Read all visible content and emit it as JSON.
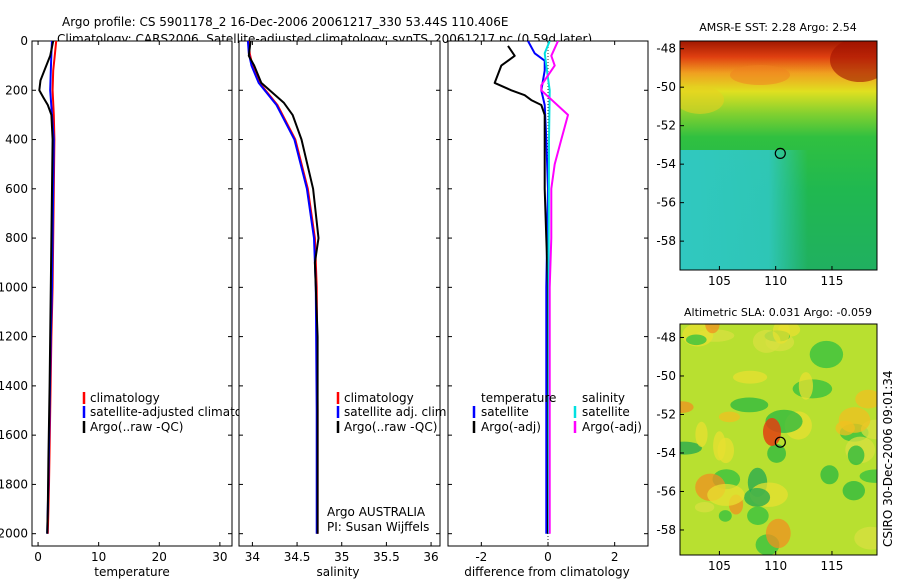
{
  "header": {
    "line1": "Argo profile: CS 5901178_2 16-Dec-2006 20061217_330 53.44S 110.406E",
    "line2": "Climatology: CARS2006. Satellite-adjusted climatology: synTS_20061217.nc (0.59d later)"
  },
  "chart_data": [
    {
      "id": "temperature",
      "type": "line",
      "xlabel": "temperature",
      "ylabel": "",
      "xlim": [
        -1,
        32
      ],
      "ylim": [
        2050,
        0
      ],
      "xticks": [
        0,
        10,
        20,
        30
      ],
      "yticks": [
        0,
        200,
        400,
        600,
        800,
        1000,
        1200,
        1400,
        1600,
        1800,
        2000
      ],
      "xtick_labels": [
        "0",
        "10",
        "20",
        "30"
      ],
      "ytick_labels": [
        "0",
        "200",
        "400",
        "600",
        "800",
        "1000",
        "1200",
        "1400",
        "1600",
        "1800",
        "2000"
      ],
      "legend": [
        "climatology",
        "satellite-adjusted climatology",
        "Argo(..raw -QC)"
      ],
      "series": [
        {
          "name": "climatology",
          "color": "#ff0000",
          "x": [
            3.0,
            2.8,
            2.5,
            2.4,
            2.6,
            2.7,
            2.6,
            2.5,
            2.4,
            2.2,
            2.0,
            1.8,
            1.6
          ],
          "y": [
            0,
            50,
            120,
            200,
            300,
            400,
            600,
            800,
            1000,
            1200,
            1500,
            1800,
            2000
          ]
        },
        {
          "name": "satellite-adjusted climatology",
          "color": "#0000ff",
          "x": [
            2.3,
            2.2,
            2.1,
            2.0,
            2.3,
            2.6,
            2.5,
            2.4,
            2.3,
            2.1,
            1.9,
            1.7,
            1.5
          ],
          "y": [
            0,
            50,
            120,
            200,
            300,
            400,
            600,
            800,
            1000,
            1200,
            1500,
            1800,
            2000
          ]
        },
        {
          "name": "Argo(..raw -QC)",
          "color": "#000000",
          "x": [
            2.5,
            2.0,
            1.2,
            0.4,
            0.2,
            0.9,
            1.6,
            2.2,
            2.4,
            2.3,
            2.1,
            1.9,
            1.7,
            1.6,
            1.5
          ],
          "y": [
            0,
            60,
            110,
            160,
            200,
            230,
            260,
            300,
            400,
            600,
            1000,
            1400,
            1700,
            1900,
            2000
          ]
        }
      ]
    },
    {
      "id": "salinity",
      "type": "line",
      "xlabel": "salinity",
      "ylabel": "",
      "xlim": [
        33.85,
        36.1
      ],
      "ylim": [
        2050,
        0
      ],
      "xticks": [
        34,
        34.5,
        35,
        35.5,
        36
      ],
      "yticks": [
        0,
        200,
        400,
        600,
        800,
        1000,
        1200,
        1400,
        1600,
        1800,
        2000
      ],
      "xtick_labels": [
        "34",
        "34.5",
        "35",
        "35.5",
        "36"
      ],
      "ytick_labels": [],
      "legend": [
        "climatology",
        "satellite adj. clim.",
        "Argo(..raw -QC)"
      ],
      "series": [
        {
          "name": "climatology",
          "color": "#ff0000",
          "x": [
            33.96,
            33.97,
            34.0,
            34.08,
            34.28,
            34.48,
            34.62,
            34.7,
            34.72,
            34.73,
            34.73
          ],
          "y": [
            0,
            50,
            100,
            170,
            260,
            400,
            600,
            800,
            1000,
            1500,
            2000
          ]
        },
        {
          "name": "satellite adj. clim.",
          "color": "#0000ff",
          "x": [
            33.95,
            33.96,
            33.99,
            34.07,
            34.27,
            34.47,
            34.61,
            34.69,
            34.71,
            34.72,
            34.72
          ],
          "y": [
            0,
            50,
            100,
            170,
            260,
            400,
            600,
            800,
            1000,
            1500,
            2000
          ]
        },
        {
          "name": "Argo(..raw -QC)",
          "color": "#000000",
          "x": [
            33.98,
            33.96,
            34.02,
            34.1,
            34.35,
            34.45,
            34.55,
            34.68,
            34.74,
            34.7,
            34.73,
            34.73
          ],
          "y": [
            0,
            60,
            100,
            170,
            250,
            300,
            400,
            600,
            800,
            900,
            1200,
            2000
          ]
        }
      ]
    },
    {
      "id": "difference",
      "type": "line",
      "xlabel": "difference from climatology",
      "ylabel": "",
      "xlim": [
        -3,
        3
      ],
      "ylim": [
        2050,
        0
      ],
      "xticks": [
        -2,
        0,
        2
      ],
      "yticks": [
        0,
        200,
        400,
        600,
        800,
        1000,
        1200,
        1400,
        1600,
        1800,
        2000
      ],
      "xtick_labels": [
        "-2",
        "0",
        "2"
      ],
      "ytick_labels": [],
      "legend": [
        "temperature",
        "satellite",
        "Argo(-adj)",
        "salinity",
        "satellite",
        "Argo(-adj)"
      ],
      "series": [
        {
          "name": "temperature satellite",
          "color": "#0000ff",
          "x": [
            -0.6,
            -0.4,
            -0.1,
            -0.1,
            -0.2,
            -0.1,
            -0.05,
            0.0,
            -0.05,
            -0.05,
            -0.05,
            -0.05
          ],
          "y": [
            0,
            50,
            80,
            120,
            200,
            260,
            400,
            600,
            1000,
            1400,
            1800,
            2000
          ]
        },
        {
          "name": "temperature Argo(-adj)",
          "color": "#000000",
          "x": [
            -1.2,
            -1.0,
            -1.4,
            -1.6,
            -1.1,
            -0.7,
            -0.5,
            -0.2,
            -0.1,
            -0.1,
            -0.1,
            -0.05,
            0.0,
            0.0,
            0.0
          ],
          "y": [
            20,
            60,
            100,
            170,
            200,
            220,
            240,
            260,
            300,
            400,
            600,
            800,
            1000,
            1500,
            2000
          ]
        },
        {
          "name": "salinity satellite",
          "color": "#00e0e0",
          "x": [
            0.05,
            -0.1,
            -0.05,
            0.0,
            0.05,
            0.03,
            0.02,
            0.02,
            0.02,
            0.03
          ],
          "y": [
            0,
            50,
            100,
            150,
            200,
            400,
            800,
            1200,
            1600,
            2000
          ]
        },
        {
          "name": "salinity Argo(-adj)",
          "color": "#ff00ff",
          "x": [
            0.3,
            0.1,
            0.2,
            -0.2,
            -0.2,
            0.6,
            0.4,
            0.2,
            0.1,
            0.1,
            0.05,
            0.05,
            0.05
          ],
          "y": [
            0,
            60,
            100,
            180,
            200,
            300,
            400,
            500,
            600,
            800,
            1000,
            1500,
            2000
          ]
        }
      ]
    },
    {
      "id": "sst-map",
      "type": "heatmap",
      "title": "AMSR-E SST: 2.28 Argo: 2.54",
      "xlim": [
        101.5,
        119
      ],
      "ylim": [
        -59.5,
        -47.6
      ],
      "xticks": [
        105,
        110,
        115
      ],
      "yticks": [
        -48,
        -50,
        -52,
        -54,
        -56,
        -58
      ],
      "xtick_labels": [
        "105",
        "110",
        "115"
      ],
      "ytick_labels": [
        "-48",
        "-50",
        "-52",
        "-54",
        "-56",
        "-58"
      ],
      "marker": {
        "lon": 110.406,
        "lat": -53.44
      }
    },
    {
      "id": "sla-map",
      "type": "heatmap",
      "title": "Altimetric SLA: 0.031 Argo: -0.059",
      "xlim": [
        101.5,
        119
      ],
      "ylim": [
        -59.3,
        -47.3
      ],
      "xticks": [
        105,
        110,
        115
      ],
      "yticks": [
        -48,
        -50,
        -52,
        -54,
        -56,
        -58
      ],
      "xtick_labels": [
        "105",
        "110",
        "115"
      ],
      "ytick_labels": [
        "-48",
        "-50",
        "-52",
        "-54",
        "-56",
        "-58"
      ],
      "marker": {
        "lon": 110.406,
        "lat": -53.44
      }
    }
  ],
  "annotations": {
    "argo_credit_1": "Argo AUSTRALIA",
    "argo_credit_2": "PI: Susan Wijffels",
    "stamp": "CSIRO 30-Dec-2006 09:01:34"
  },
  "colors": {
    "climatology": "#ff0000",
    "satellite": "#0000ff",
    "argo": "#000000",
    "salinity_satellite": "#00e0e0",
    "salinity_argo": "#ff00ff"
  }
}
